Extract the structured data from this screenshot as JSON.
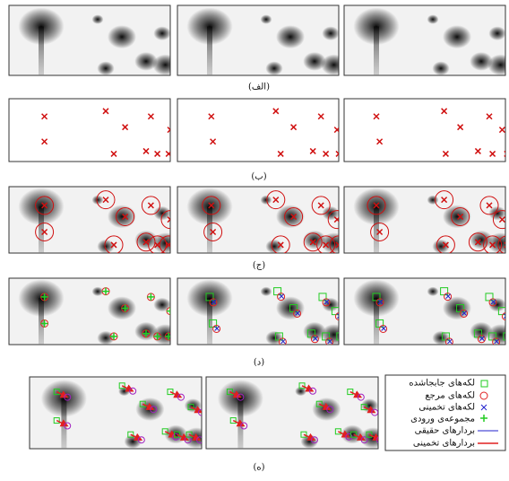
{
  "captions": [
    "(الف)",
    "(ب)",
    "(ج)",
    "(د)",
    "(ه)"
  ],
  "legend": [
    "لکه‌های جابجاشده",
    "لکه‌های مرجع",
    "لکه‌های تخمینی",
    "مجموعه‌ی ورودی",
    "بردارهای حقیقی",
    "بردارهای تخمینی"
  ]
}
